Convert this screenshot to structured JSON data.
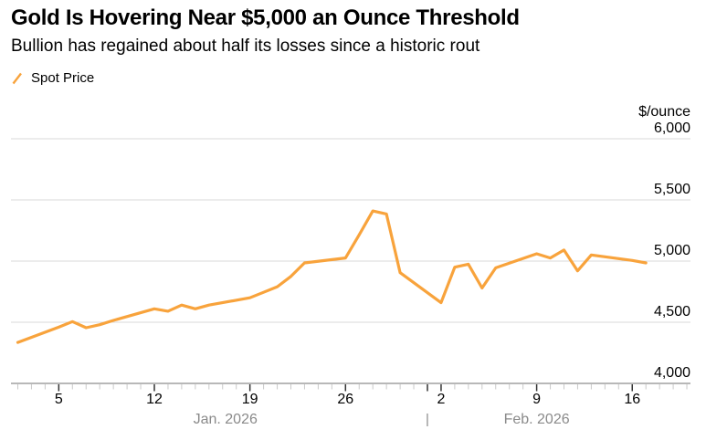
{
  "header": {
    "title": "Gold Is Hovering Near $5,000 an Ounce Threshold",
    "subtitle": "Bullion has regained about half its losses since a historic rout"
  },
  "colors": {
    "line": "#F8A33C",
    "grid": "#D8D8D8",
    "axis_line": "#B8B8B8",
    "minor_tick": "#C9C9C9",
    "major_tick": "#333333",
    "axis_text": "#000000",
    "month_text": "#8A8A8A",
    "title_text": "#000000"
  },
  "chart_data": {
    "type": "line",
    "title": "Gold Is Hovering Near $5,000 an Ounce Threshold",
    "subtitle": "Bullion has regained about half its losses since a historic rout",
    "unit_label": "$/ounce",
    "ylim": [
      4000,
      6000
    ],
    "grid": true,
    "legend_position": "top-left",
    "y_ticks": [
      {
        "v": 6000,
        "label": "6,000"
      },
      {
        "v": 5500,
        "label": "5,500"
      },
      {
        "v": 5000,
        "label": "5,000"
      },
      {
        "v": 4500,
        "label": "4,500"
      },
      {
        "v": 4000,
        "label": "4,000"
      }
    ],
    "x_ticks": [
      {
        "label": "5",
        "day": 3
      },
      {
        "label": "12",
        "day": 10
      },
      {
        "label": "19",
        "day": 17
      },
      {
        "label": "26",
        "day": 24
      },
      {
        "label": "2",
        "day": 31
      },
      {
        "label": "9",
        "day": 38
      },
      {
        "label": "16",
        "day": 45
      }
    ],
    "minor_tick_days": {
      "from": 0,
      "to": 49
    },
    "months": [
      {
        "label": "Jan. 2026",
        "center_day": 15.2
      },
      {
        "label": "Feb. 2026",
        "center_day": 38
      }
    ],
    "month_separator": {
      "glyph": "|",
      "day": 30
    },
    "series": [
      {
        "name": "Spot Price",
        "color": "#F8A33C",
        "points": [
          {
            "date": "Jan 2",
            "d": 0,
            "v": 4335
          },
          {
            "date": "Jan 5",
            "d": 3,
            "v": 4460
          },
          {
            "date": "Jan 6",
            "d": 4,
            "v": 4505
          },
          {
            "date": "Jan 7",
            "d": 5,
            "v": 4455
          },
          {
            "date": "Jan 8",
            "d": 6,
            "v": 4480
          },
          {
            "date": "Jan 9",
            "d": 7,
            "v": 4515
          },
          {
            "date": "Jan 12",
            "d": 10,
            "v": 4610
          },
          {
            "date": "Jan 13",
            "d": 11,
            "v": 4590
          },
          {
            "date": "Jan 14",
            "d": 12,
            "v": 4640
          },
          {
            "date": "Jan 15",
            "d": 13,
            "v": 4610
          },
          {
            "date": "Jan 16",
            "d": 14,
            "v": 4640
          },
          {
            "date": "Jan 19",
            "d": 17,
            "v": 4700
          },
          {
            "date": "Jan 20",
            "d": 18,
            "v": 4745
          },
          {
            "date": "Jan 21",
            "d": 19,
            "v": 4790
          },
          {
            "date": "Jan 22",
            "d": 20,
            "v": 4875
          },
          {
            "date": "Jan 23",
            "d": 21,
            "v": 4985
          },
          {
            "date": "Jan 26",
            "d": 24,
            "v": 5025
          },
          {
            "date": "Jan 27",
            "d": 25,
            "v": 5215
          },
          {
            "date": "Jan 28",
            "d": 26,
            "v": 5410
          },
          {
            "date": "Jan 29",
            "d": 27,
            "v": 5385
          },
          {
            "date": "Jan 30",
            "d": 28,
            "v": 4905
          },
          {
            "date": "Feb 2",
            "d": 31,
            "v": 4660
          },
          {
            "date": "Feb 3",
            "d": 32,
            "v": 4950
          },
          {
            "date": "Feb 4",
            "d": 33,
            "v": 4975
          },
          {
            "date": "Feb 5",
            "d": 34,
            "v": 4780
          },
          {
            "date": "Feb 6",
            "d": 35,
            "v": 4945
          },
          {
            "date": "Feb 9",
            "d": 38,
            "v": 5060
          },
          {
            "date": "Feb 10",
            "d": 39,
            "v": 5025
          },
          {
            "date": "Feb 11",
            "d": 40,
            "v": 5090
          },
          {
            "date": "Feb 12",
            "d": 41,
            "v": 4920
          },
          {
            "date": "Feb 13",
            "d": 42,
            "v": 5050
          },
          {
            "date": "Feb 16",
            "d": 45,
            "v": 5005
          },
          {
            "date": "Feb 17",
            "d": 46,
            "v": 4985
          }
        ]
      }
    ]
  }
}
